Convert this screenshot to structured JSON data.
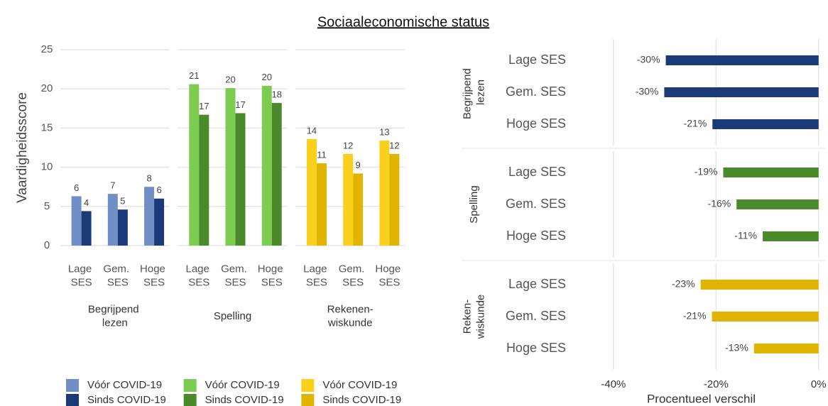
{
  "title": "Sociaaleconomische status",
  "chart_data": [
    {
      "type": "bar",
      "y_label": "Vaardigheidsscore",
      "ylim": [
        0,
        25
      ],
      "yticks": [
        0,
        5,
        10,
        15,
        20,
        25
      ],
      "grid": true,
      "categories": [
        "Lage SES",
        "Gem. SES",
        "Hoge SES"
      ],
      "panels": [
        {
          "name": "Begrijpend lezen",
          "series": [
            {
              "name": "Vóór COVID-19",
              "color": "#6f8fc6",
              "values": [
                6.3,
                6.6,
                7.5
              ],
              "value_labels": [
                "6",
                "7",
                "8"
              ]
            },
            {
              "name": "Sinds COVID-19",
              "color": "#1b3a78",
              "values": [
                4.4,
                4.6,
                6.0
              ],
              "value_labels": [
                "4",
                "5",
                "6"
              ]
            }
          ]
        },
        {
          "name": "Spelling",
          "series": [
            {
              "name": "Vóór COVID-19",
              "color": "#7dcc52",
              "values": [
                20.6,
                20.1,
                20.4
              ],
              "value_labels": [
                "21",
                "20",
                "20"
              ]
            },
            {
              "name": "Sinds COVID-19",
              "color": "#4b8a2b",
              "values": [
                16.7,
                16.9,
                18.2
              ],
              "value_labels": [
                "17",
                "17",
                "18"
              ]
            }
          ]
        },
        {
          "name": "Rekenen-wiskunde",
          "series": [
            {
              "name": "Vóór COVID-19",
              "color": "#f9d11d",
              "values": [
                13.6,
                11.7,
                13.4
              ],
              "value_labels": [
                "14",
                "12",
                "13"
              ]
            },
            {
              "name": "Sinds COVID-19",
              "color": "#e0b400",
              "values": [
                10.5,
                9.2,
                11.7
              ],
              "value_labels": [
                "11",
                "9",
                "12"
              ]
            }
          ]
        }
      ]
    },
    {
      "type": "barh",
      "x_label": "Procentueel verschil",
      "xlim": [
        -44,
        1
      ],
      "xticks": [
        {
          "value": -40,
          "label": "-40%"
        },
        {
          "value": -20,
          "label": "-20%"
        },
        {
          "value": 0,
          "label": "0%"
        }
      ],
      "grid": true,
      "categories": [
        "Lage SES",
        "Gem. SES",
        "Hoge SES"
      ],
      "panels": [
        {
          "name": "Begrijpend lezen",
          "color": "#1b3a78",
          "values": [
            -29.8,
            -30.1,
            -20.7
          ],
          "value_labels": [
            "-30%",
            "-30%",
            "-21%"
          ]
        },
        {
          "name": "Spelling",
          "color": "#4b8a2b",
          "values": [
            -18.6,
            -16.0,
            -10.9
          ],
          "value_labels": [
            "-19%",
            "-16%",
            "-11%"
          ]
        },
        {
          "name": "Reken-wiskunde",
          "color": "#e0b400",
          "values": [
            -23.0,
            -20.8,
            -12.6
          ],
          "value_labels": [
            "-23%",
            "-21%",
            "-13%"
          ]
        }
      ]
    }
  ]
}
